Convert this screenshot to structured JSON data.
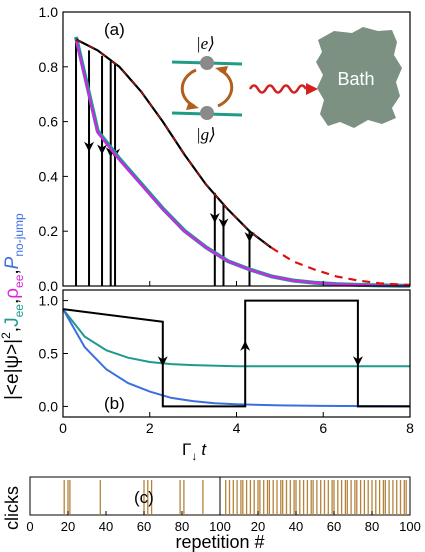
{
  "colors": {
    "jump": "#000000",
    "no_jump_envelope": "#dd1111",
    "rho_ee": "#dd22dd",
    "j_ee": "#1b9a8e",
    "p_no_jump": "#3b6fe0",
    "click": "#b5823c",
    "bath": "#7d9183",
    "level": "#1f9c86",
    "atom": "#8a8a8a",
    "arrow": "#b15f1c",
    "wiggle": "#d42020"
  },
  "ylabel_parts": {
    "a": "|<e|ψ>|",
    "sq": "2",
    "comma1": ",",
    "j": "J",
    "jsub": "ee",
    "comma2": ",",
    "rho": "ρ",
    "rhosub": "ee",
    "comma3": ",",
    "p": "P",
    "psub": "no-jump"
  },
  "inset": {
    "ket_e": "|e⟩",
    "ket_g": "|g⟩",
    "bath_label": "Bath"
  },
  "chart_data": [
    {
      "id": "a",
      "type": "line",
      "panel_label": "(a)",
      "xlim": [
        0,
        8
      ],
      "ylim": [
        0,
        1.0
      ],
      "yticks": [
        "0.0",
        "0.2",
        "0.4",
        "0.6",
        "0.8",
        "1.0"
      ],
      "xticks_shown": false,
      "series": [
        {
          "key": "envelope",
          "x": [
            0.3,
            0.8,
            1.3,
            1.8,
            2.3,
            2.8,
            3.3,
            3.8,
            4.3,
            4.8,
            5.3,
            5.8,
            6.3,
            6.8,
            7.3,
            7.8,
            8.0
          ],
          "y": [
            0.9,
            0.86,
            0.8,
            0.71,
            0.6,
            0.48,
            0.37,
            0.28,
            0.2,
            0.14,
            0.09,
            0.06,
            0.035,
            0.02,
            0.01,
            0.005,
            0.004
          ],
          "style": "solid-until-4.8-then-dashed"
        },
        {
          "key": "ensemble",
          "x": [
            0.3,
            0.8,
            1.3,
            1.8,
            2.3,
            2.8,
            3.3,
            3.8,
            4.3,
            4.8,
            5.3,
            5.8,
            6.3,
            6.8,
            7.3,
            7.8,
            8.0
          ],
          "y": [
            0.9,
            0.56,
            0.46,
            0.37,
            0.28,
            0.2,
            0.14,
            0.09,
            0.06,
            0.035,
            0.02,
            0.012,
            0.007,
            0.004,
            0.002,
            0.001,
            0.001
          ]
        }
      ],
      "jumps": [
        {
          "x": 0.6,
          "y": 0.86
        },
        {
          "x": 0.9,
          "y": 0.84
        },
        {
          "x": 1.1,
          "y": 0.82
        },
        {
          "x": 1.2,
          "y": 0.81
        },
        {
          "x": 3.5,
          "y": 0.34
        },
        {
          "x": 3.7,
          "y": 0.3
        },
        {
          "x": 4.3,
          "y": 0.2
        }
      ]
    },
    {
      "id": "b",
      "type": "line",
      "panel_label": "(b)",
      "xlim": [
        0,
        8
      ],
      "ylim": [
        -0.1,
        1.1
      ],
      "xticks": [
        0,
        2,
        4,
        6,
        8
      ],
      "xtick_labels": [
        "0",
        "2",
        "4",
        "6",
        "8"
      ],
      "yticks": [
        0.0,
        0.5,
        1.0
      ],
      "ytick_labels": [
        "0.0",
        "0.5",
        "1.0"
      ],
      "xlabel_parts": {
        "g": "Γ",
        "sub": "↓",
        "t": "t"
      },
      "trajectory": {
        "x": [
          0,
          2.3,
          2.3,
          3.3,
          3.3,
          4.2,
          4.2,
          6.8,
          6.8,
          8.0
        ],
        "y": [
          0.92,
          0.8,
          0.0,
          0.0,
          0.0,
          0.0,
          1.0,
          1.0,
          0.0,
          0.0
        ],
        "jump_down_x": [
          2.3,
          6.8
        ],
        "jump_up_x": [
          4.2
        ]
      },
      "series": [
        {
          "key": "teal",
          "x": [
            0,
            0.5,
            1,
            1.5,
            2,
            2.5,
            3,
            4,
            5,
            6,
            7,
            8
          ],
          "y": [
            0.92,
            0.66,
            0.53,
            0.46,
            0.42,
            0.4,
            0.39,
            0.38,
            0.38,
            0.38,
            0.38,
            0.38
          ]
        },
        {
          "key": "blue",
          "x": [
            0,
            0.5,
            1,
            1.5,
            2,
            2.5,
            3,
            3.5,
            4,
            5,
            6,
            7,
            8
          ],
          "y": [
            0.92,
            0.56,
            0.35,
            0.22,
            0.14,
            0.08,
            0.05,
            0.03,
            0.02,
            0.01,
            0.005,
            0.003,
            0.002
          ]
        }
      ]
    },
    {
      "id": "c",
      "type": "bar",
      "panel_label": "(c)",
      "ylabel": "clicks",
      "xlabel": "repetition #",
      "xticks": [
        0,
        20,
        40,
        60,
        80,
        100
      ],
      "xtick_labels": [
        "0",
        "20",
        "40",
        "60",
        "80",
        "100"
      ],
      "left": {
        "xlim": [
          0,
          100
        ],
        "clicks": [
          18,
          20,
          21,
          37,
          60,
          62,
          64,
          79,
          81,
          91
        ]
      },
      "right": {
        "xlim": [
          0,
          100
        ],
        "clicks": [
          3,
          5,
          7,
          9,
          11,
          12,
          14,
          16,
          18,
          20,
          21,
          23,
          25,
          26,
          28,
          30,
          32,
          33,
          35,
          37,
          39,
          40,
          42,
          44,
          46,
          48,
          49,
          51,
          53,
          55,
          57,
          59,
          60,
          62,
          64,
          66,
          67,
          69,
          71,
          72,
          74,
          76,
          78,
          80,
          82,
          84,
          86,
          87,
          89,
          91,
          93,
          95,
          97,
          98
        ]
      }
    }
  ]
}
